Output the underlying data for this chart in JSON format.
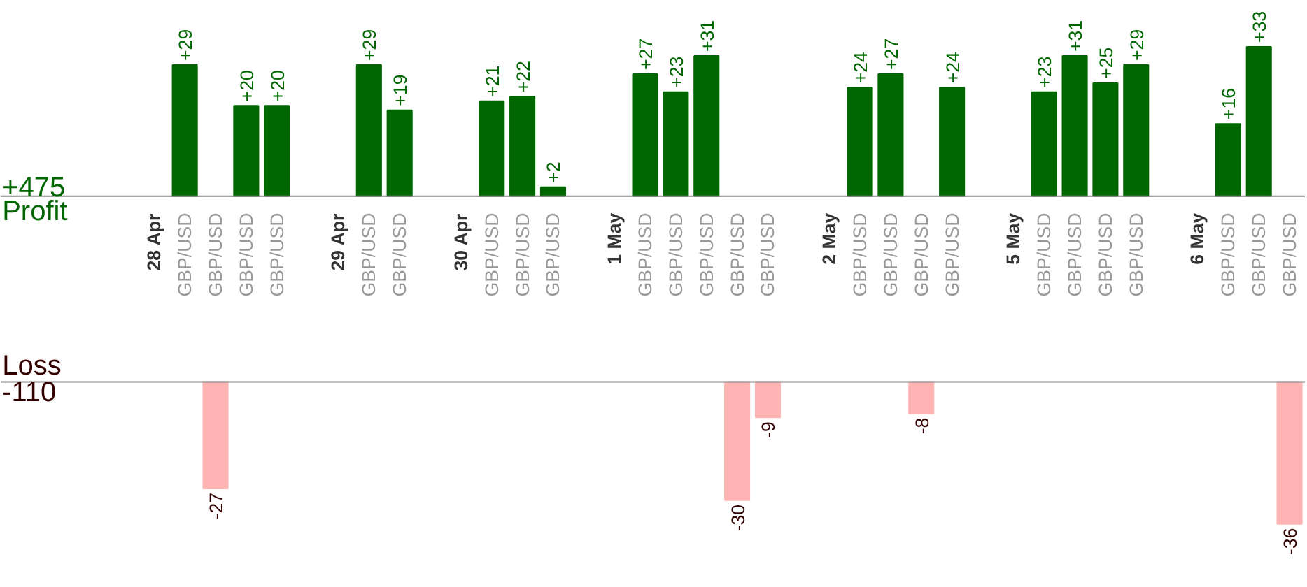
{
  "chart_data": [
    {
      "type": "bar",
      "categories": [
        "28 Apr",
        "GBP/USD",
        "GBP/USD",
        "GBP/USD",
        "GBP/USD",
        null,
        "29 Apr",
        "GBP/USD",
        "GBP/USD",
        null,
        "30 Apr",
        "GBP/USD",
        "GBP/USD",
        "GBP/USD",
        null,
        "1 May",
        "GBP/USD",
        "GBP/USD",
        "GBP/USD",
        "GBP/USD",
        "GBP/USD",
        null,
        "2 May",
        "GBP/USD",
        "GBP/USD",
        "GBP/USD",
        "GBP/USD",
        null,
        "5 May",
        "GBP/USD",
        "GBP/USD",
        "GBP/USD",
        "GBP/USD",
        null,
        "6 May",
        "GBP/USD",
        "GBP/USD",
        "GBP/USD"
      ],
      "series": [
        {
          "name": "Profit",
          "color": "#006600",
          "values": [
            null,
            29,
            null,
            20,
            20,
            null,
            null,
            29,
            19,
            null,
            null,
            21,
            22,
            2,
            null,
            null,
            27,
            23,
            31,
            null,
            null,
            null,
            null,
            24,
            27,
            null,
            24,
            null,
            null,
            23,
            31,
            25,
            29,
            null,
            null,
            16,
            33,
            null
          ],
          "value_labels": [
            null,
            "+29",
            null,
            "+20",
            "+20",
            null,
            null,
            "+29",
            "+19",
            null,
            null,
            "+21",
            "+22",
            "+2",
            null,
            null,
            "+27",
            "+23",
            "+31",
            null,
            null,
            null,
            null,
            "+24",
            "+27",
            null,
            "+24",
            null,
            null,
            "+23",
            "+31",
            "+25",
            "+29",
            null,
            null,
            "+16",
            "+33",
            null
          ]
        }
      ],
      "tick_labels": "x",
      "annotations": [
        "+475"
      ]
    },
    {
      "type": "bar",
      "categories": [
        null,
        null,
        null,
        null,
        null,
        null,
        null,
        null,
        null,
        null,
        null,
        null,
        null,
        null,
        null,
        null,
        null,
        null,
        null,
        null,
        null,
        null,
        null,
        null,
        null,
        null,
        null,
        null,
        null,
        null,
        null,
        null,
        null,
        null,
        null,
        null,
        null,
        null
      ],
      "series": [
        {
          "name": "Loss",
          "color": "#ffb3b3",
          "values": [
            null,
            null,
            -27,
            null,
            null,
            null,
            null,
            null,
            null,
            null,
            null,
            null,
            null,
            null,
            null,
            null,
            null,
            null,
            null,
            -30,
            -9,
            null,
            null,
            null,
            null,
            -8,
            null,
            null,
            null,
            null,
            null,
            null,
            null,
            null,
            null,
            null,
            null,
            -36
          ],
          "value_labels": [
            null,
            null,
            "-27",
            null,
            null,
            null,
            null,
            null,
            null,
            null,
            null,
            null,
            null,
            null,
            null,
            null,
            null,
            null,
            null,
            "-30",
            "-9",
            null,
            null,
            null,
            null,
            "-8",
            null,
            null,
            null,
            null,
            null,
            null,
            null,
            null,
            null,
            null,
            null,
            "-36"
          ]
        }
      ],
      "tick_labels": false,
      "annotations": [
        "-110"
      ]
    }
  ]
}
